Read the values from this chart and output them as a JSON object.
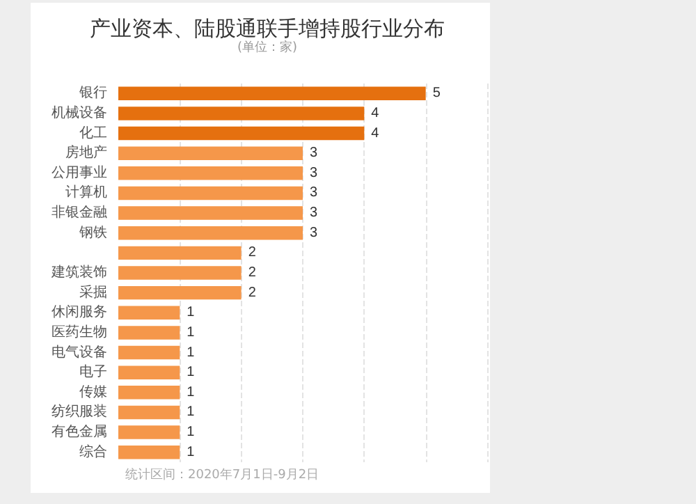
{
  "chart_data": {
    "type": "bar",
    "orientation": "horizontal",
    "title": "产业资本、陆股通联手增持股行业分布",
    "subtitle": "(单位：家)",
    "categories": [
      "银行",
      "机械设备",
      "化工",
      "房地产",
      "公用事业",
      "计算机",
      "非银金融",
      "钢铁",
      null,
      "建筑装饰",
      "采掘",
      "休闲服务",
      "医药生物",
      "电气设备",
      "电子",
      "传媒",
      "纺织服装",
      "有色金属",
      "综合"
    ],
    "values": [
      5,
      4,
      4,
      3,
      3,
      3,
      3,
      3,
      2,
      2,
      2,
      1,
      1,
      1,
      1,
      1,
      1,
      1,
      1
    ],
    "colors": [
      "#e5700f",
      "#e5700f",
      "#e5700f",
      "#f5974a",
      "#f5974a",
      "#f5974a",
      "#f5974a",
      "#f5974a",
      "#f5974a",
      "#f5974a",
      "#f5974a",
      "#f5974a",
      "#f5974a",
      "#f5974a",
      "#f5974a",
      "#f5974a",
      "#f5974a",
      "#f5974a",
      "#f5974a"
    ],
    "data_labels": true,
    "xlim": [
      0,
      6
    ],
    "xticks": [
      {
        "value": 1,
        "label": null
      },
      {
        "value": 2,
        "label": null
      },
      {
        "value": 3,
        "label": null
      },
      {
        "value": 4,
        "label": null
      },
      {
        "value": 5,
        "label": null
      },
      {
        "value": 6,
        "label": null
      }
    ],
    "tick_labels": "y",
    "grid": "x",
    "annotations": [
      "统计区间：2020年7月1日-9月2日"
    ]
  }
}
